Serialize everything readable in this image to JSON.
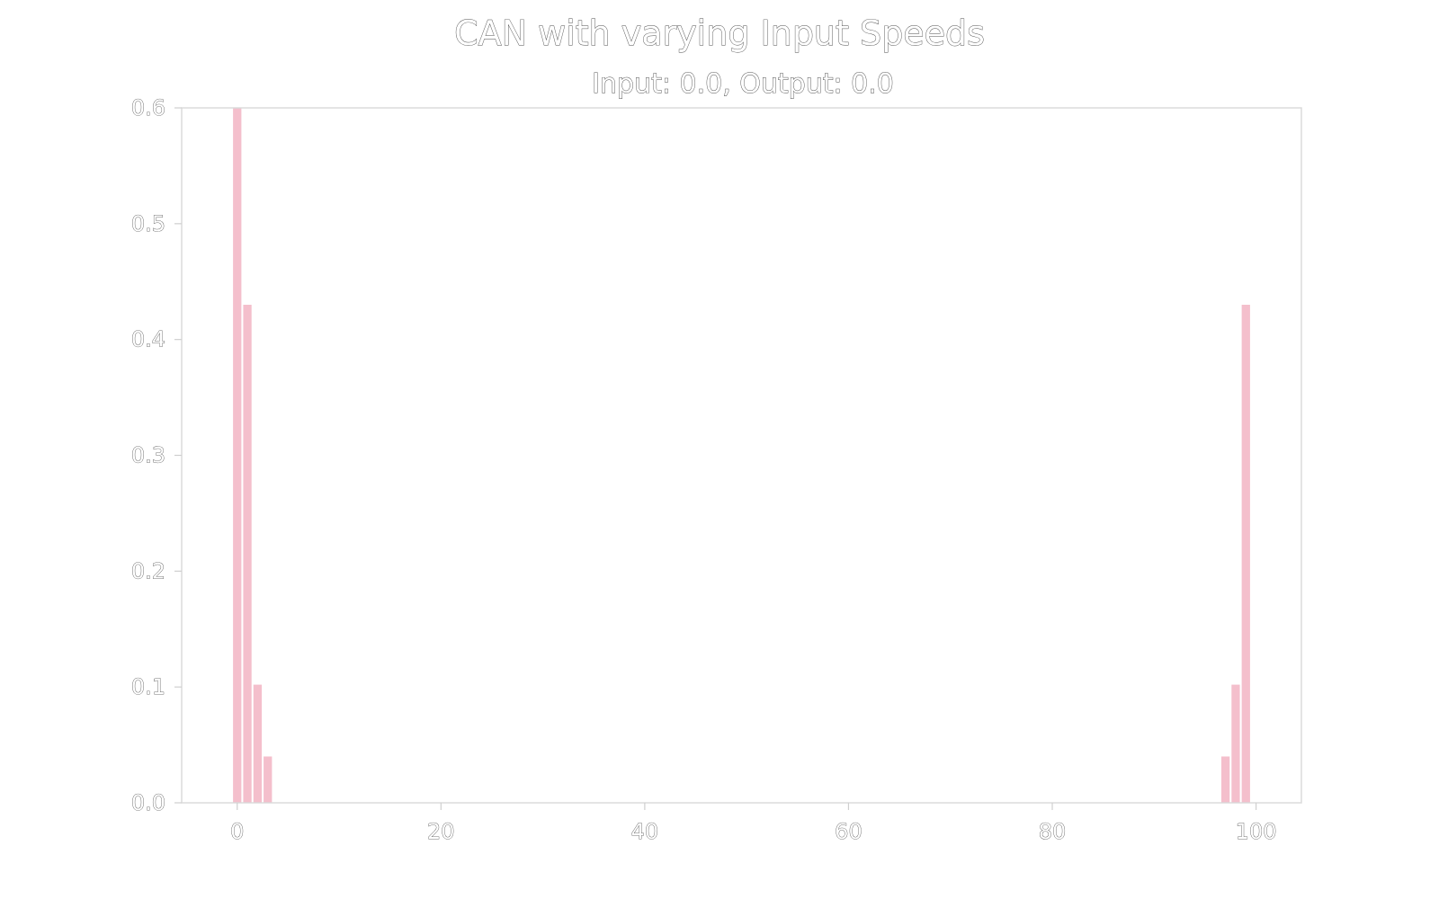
{
  "chart_data": {
    "type": "bar",
    "title": "CAN with varying Input Speeds",
    "subtitle": "Input: 0.0, Output: 0.0",
    "xlabel": "",
    "ylabel": "",
    "xlim": [
      -5.45,
      104.45
    ],
    "ylim": [
      0,
      0.6
    ],
    "xticks": [
      "0",
      "20",
      "40",
      "60",
      "80",
      "100"
    ],
    "yticks": [
      "0.0",
      "0.1",
      "0.2",
      "0.3",
      "0.4",
      "0.5",
      "0.6"
    ],
    "grid": false,
    "bar_color": "#f4bfcc",
    "bars": [
      {
        "x": 0,
        "value": 0.6
      },
      {
        "x": 1,
        "value": 0.43
      },
      {
        "x": 2,
        "value": 0.102
      },
      {
        "x": 3,
        "value": 0.04
      },
      {
        "x": 97,
        "value": 0.04
      },
      {
        "x": 98,
        "value": 0.102
      },
      {
        "x": 99,
        "value": 0.43
      }
    ]
  }
}
